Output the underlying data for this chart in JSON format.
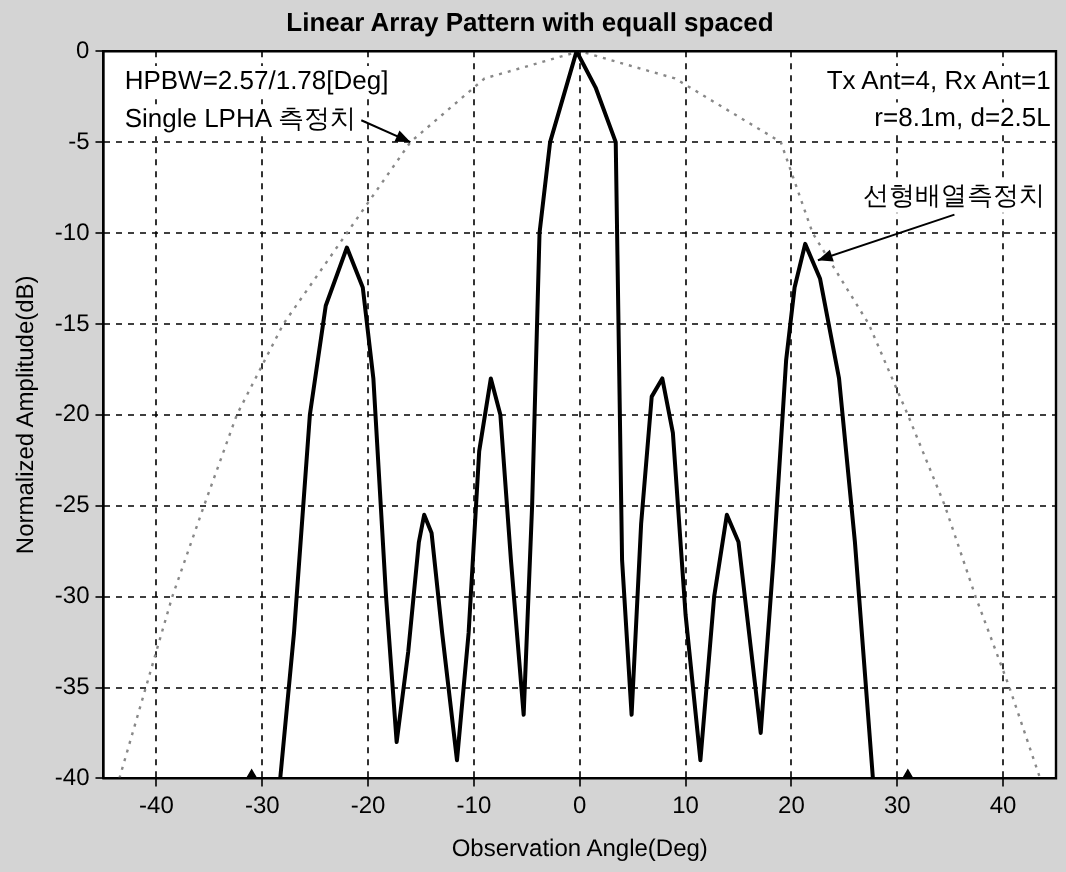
{
  "chart_data": {
    "type": "line",
    "title": "Linear Array Pattern with equall spaced",
    "xlabel": "Observation Angle(Deg)",
    "ylabel": "Normalized Amplitude(dB)",
    "xlim": [
      -45,
      45
    ],
    "xticks": [
      -40,
      -30,
      -20,
      -10,
      0,
      10,
      20,
      30,
      40
    ],
    "ylim": [
      -40,
      0
    ],
    "yticks": [
      -40,
      -35,
      -30,
      -25,
      -20,
      -15,
      -10,
      -5,
      0
    ],
    "grid": true,
    "legend": false,
    "series": [
      {
        "type": "line",
        "color": "#000000",
        "line_style": "solid",
        "marker": "none",
        "x": [
          -28.3,
          -27,
          -25.5,
          -24,
          -22,
          -20.5,
          -19.5,
          -18.3,
          -17.3,
          -16.2,
          -15.2,
          -14.7,
          -14,
          -13,
          -11.6,
          -10.5,
          -9.5,
          -8.4,
          -7.5,
          -6.5,
          -5.3,
          -4.5,
          -3.8,
          -2.8,
          -0.3,
          1.5,
          3.4,
          4.0,
          4.9,
          5.8,
          6.8,
          7.8,
          8.8,
          10,
          11.4,
          12.7,
          13.9,
          15,
          16.2,
          17.1,
          18.3,
          19.5,
          20.3,
          21.3,
          22.7,
          24.5,
          26,
          27.7
        ],
        "values": [
          -40,
          -32,
          -20,
          -14,
          -10.8,
          -13,
          -18,
          -30,
          -38,
          -33,
          -27,
          -25.5,
          -26.5,
          -32,
          -39,
          -32,
          -22,
          -18,
          -20,
          -28,
          -36.5,
          -25,
          -10,
          -5,
          0,
          -2,
          -5,
          -28,
          -36.5,
          -26,
          -19,
          -18,
          -21,
          -31,
          -39,
          -30,
          -25.5,
          -27,
          -33,
          -37.5,
          -28,
          -17,
          -13,
          -10.6,
          -12.5,
          -18,
          -27,
          -40
        ]
      },
      {
        "type": "line",
        "color": "#888888",
        "line_style": "dotted",
        "marker": "none",
        "x": [
          -43.5,
          -41,
          -38.5,
          -35.5,
          -32.4,
          -28,
          -22,
          -16,
          -9,
          0,
          9,
          19,
          22,
          27.3,
          31,
          34.5,
          37.4,
          40.6,
          43.5
        ],
        "values": [
          -40,
          -35,
          -30,
          -25,
          -20,
          -15,
          -10,
          -5,
          -1.5,
          0,
          -1.5,
          -5,
          -10,
          -15,
          -20,
          -25,
          -30,
          -35,
          -40
        ]
      },
      {
        "type": "scatter",
        "color": "#000000",
        "marker": "triangle",
        "x": [
          -31,
          31
        ],
        "values": [
          -40,
          -40
        ]
      }
    ],
    "annotations": [
      "HPBW=2.57/1.78[Deg]",
      {
        "text": "Single LPHA 측정치",
        "x": -16,
        "y": -5
      },
      "Tx Ant=4, Rx Ant=1",
      "r=8.1m, d=2.5L",
      {
        "text": "선형배열측정치",
        "x": 22.5,
        "y": -11.5
      }
    ]
  }
}
